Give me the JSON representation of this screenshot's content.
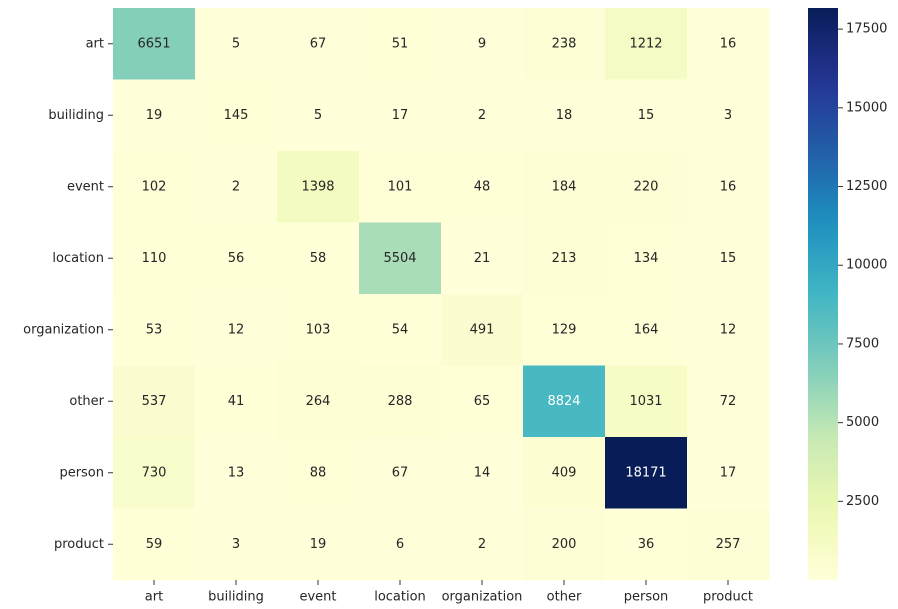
{
  "chart_data": {
    "type": "heatmap",
    "x_categories": [
      "art",
      "builiding",
      "event",
      "location",
      "organization",
      "other",
      "person",
      "product"
    ],
    "y_categories": [
      "art",
      "builiding",
      "event",
      "location",
      "organization",
      "other",
      "person",
      "product"
    ],
    "values": [
      [
        6651,
        5,
        67,
        51,
        9,
        238,
        1212,
        16
      ],
      [
        19,
        145,
        5,
        17,
        2,
        18,
        15,
        3
      ],
      [
        102,
        2,
        1398,
        101,
        48,
        184,
        220,
        16
      ],
      [
        110,
        56,
        58,
        5504,
        21,
        213,
        134,
        15
      ],
      [
        53,
        12,
        103,
        54,
        491,
        129,
        164,
        12
      ],
      [
        537,
        41,
        264,
        288,
        65,
        8824,
        1031,
        72
      ],
      [
        730,
        13,
        88,
        67,
        14,
        409,
        18171,
        17
      ],
      [
        59,
        3,
        19,
        6,
        2,
        200,
        36,
        257
      ]
    ],
    "colormap": "YlGnBu",
    "clim": [
      2,
      18171
    ],
    "cticks": [
      2500,
      5000,
      7500,
      10000,
      12500,
      15000,
      17500
    ]
  }
}
